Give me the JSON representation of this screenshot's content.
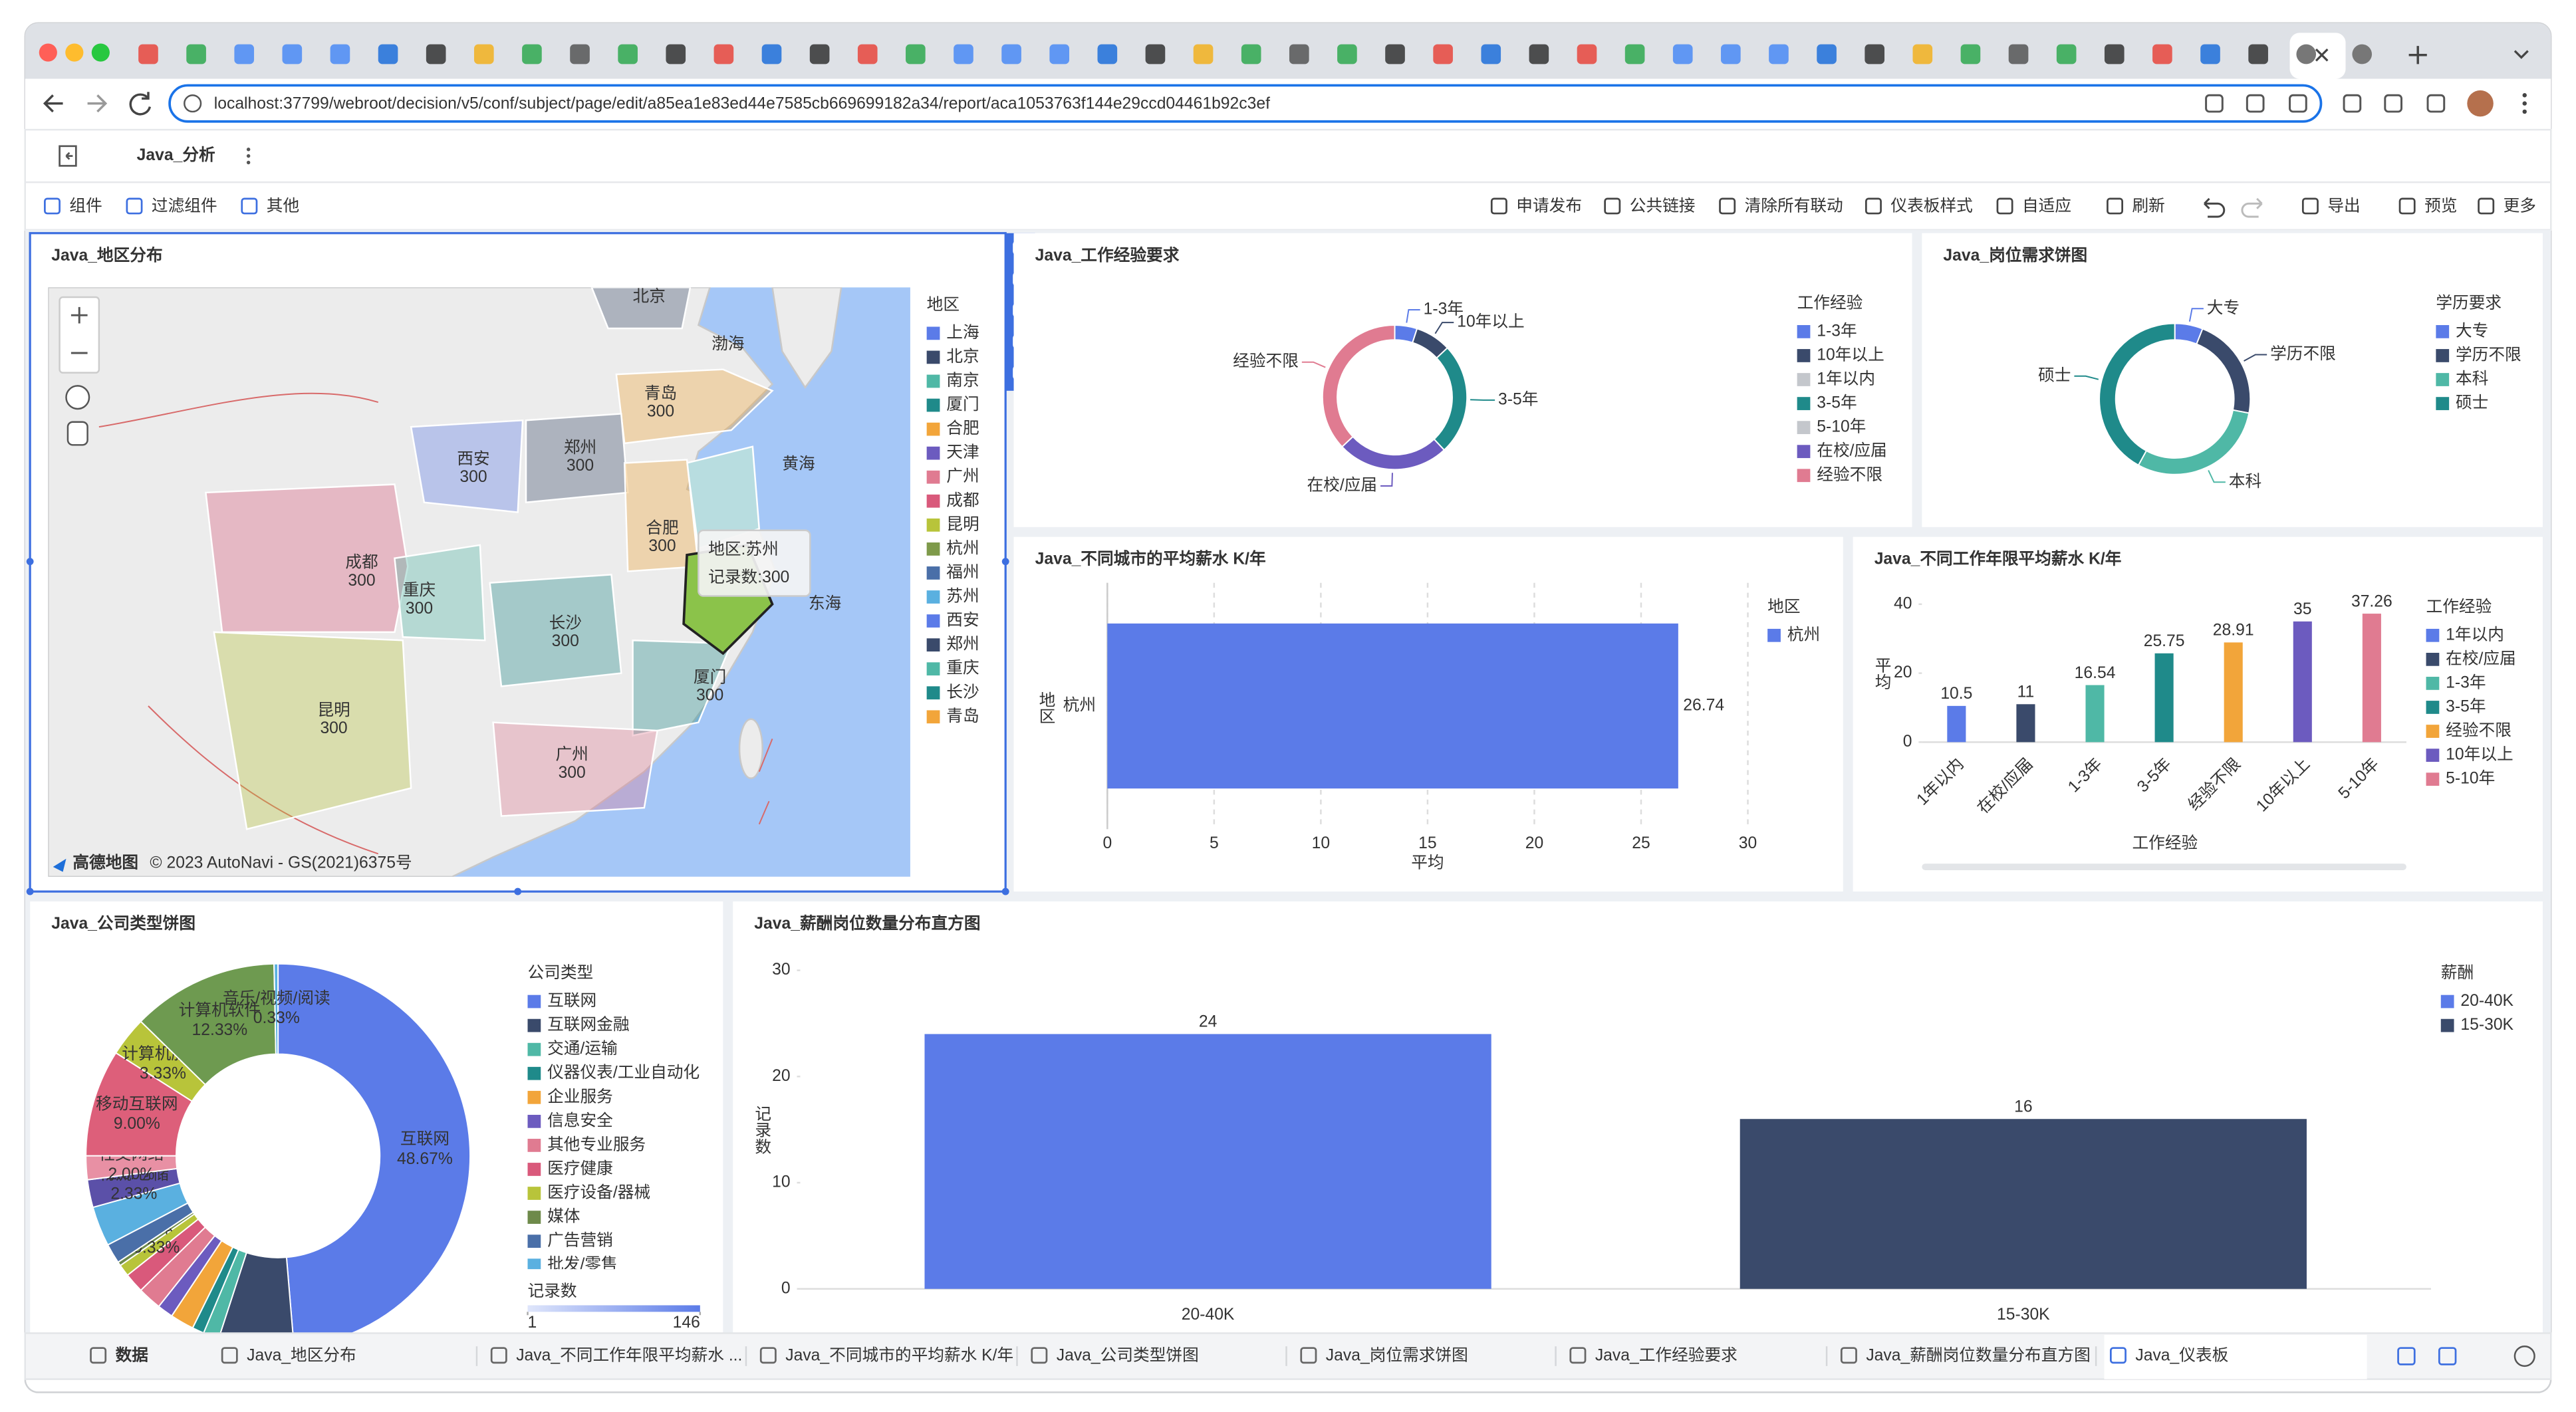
{
  "browser": {
    "url": "localhost:37799/webroot/decision/v5/conf/subject/page/edit/a85ea1e83ed44e7585cb669699182a34/report/aca1053763f144e29ccd04461b92c3ef"
  },
  "header": {
    "title": "Java_分析"
  },
  "toolbar": {
    "left": [
      "组件",
      "过滤组件",
      "其他"
    ],
    "right": [
      "申请发布",
      "公共链接",
      "清除所有联动",
      "仪表板样式",
      "自适应",
      "刷新",
      "导出",
      "预览",
      "更多"
    ]
  },
  "chart_data": [
    {
      "type": "map",
      "title": "Java_地区分布",
      "legend_title": "地区",
      "categories": [
        "上海",
        "北京",
        "南京",
        "厦门",
        "合肥",
        "天津",
        "广州",
        "成都",
        "昆明",
        "杭州",
        "福州",
        "苏州",
        "西安",
        "郑州",
        "重庆",
        "长沙",
        "青岛"
      ],
      "colors": [
        "#5b7be8",
        "#3a4a6b",
        "#4fb8a6",
        "#1f8a8a",
        "#f2a53a",
        "#6c5bbf",
        "#e07b91",
        "#d9597b",
        "#b8c43a",
        "#7e9a4a",
        "#4a6fa8",
        "#5ab0e0",
        "#5b7be8",
        "#3a4a6b",
        "#4fb8a6",
        "#1f8a8a",
        "#f2a53a"
      ],
      "region_labels": [
        {
          "name": "北京"
        },
        {
          "name": "青岛",
          "value": 300
        },
        {
          "name": "西安",
          "value": 300
        },
        {
          "name": "郑州",
          "value": 300
        },
        {
          "name": "成都",
          "value": 300
        },
        {
          "name": "重庆",
          "value": 300
        },
        {
          "name": "合肥",
          "value": 300
        },
        {
          "name": "长沙",
          "value": 300
        },
        {
          "name": "厦门",
          "value": 300
        },
        {
          "name": "昆明",
          "value": 300
        },
        {
          "name": "广州",
          "value": 300
        }
      ],
      "sea_labels": [
        "渤海",
        "黄海",
        "东海"
      ],
      "tooltip": [
        "地区:苏州",
        "记录数:300"
      ],
      "attribution": "高德地图",
      "copyright": "© 2023 AutoNavi - GS(2021)6375号"
    },
    {
      "type": "donut",
      "title": "Java_工作经验要求",
      "legend_title": "工作经验",
      "label_position": "outside",
      "categories": [
        "1-3年",
        "10年以上",
        "1年以内",
        "3-5年",
        "5-10年",
        "在校/应届",
        "经验不限"
      ],
      "values": [
        5,
        8,
        null,
        25,
        null,
        25,
        37
      ],
      "colors": [
        "#5b7be8",
        "#3a4a6b",
        "#c4c7cc",
        "#1f8a8a",
        "#c4c7cc",
        "#6c5bbf",
        "#e07b91"
      ]
    },
    {
      "type": "donut",
      "title": "Java_岗位需求饼图",
      "legend_title": "学历要求",
      "label_position": "outside",
      "categories": [
        "大专",
        "学历不限",
        "本科",
        "硕士"
      ],
      "values": [
        6,
        22,
        30,
        42
      ],
      "colors": [
        "#5b7be8",
        "#3a4a6b",
        "#4fb8a6",
        "#1f8a8a"
      ]
    },
    {
      "type": "bar",
      "orientation": "horizontal",
      "title": "Java_不同城市的平均薪水 K/年",
      "legend_title": "地区",
      "y_label": "地区",
      "x_label": "平均",
      "categories": [
        "杭州"
      ],
      "values": [
        26.74
      ],
      "colors": [
        "#5b7be8"
      ],
      "xlim": [
        0,
        30
      ],
      "xticks": [
        0,
        5,
        10,
        15,
        20,
        25,
        30
      ],
      "grid": true
    },
    {
      "type": "bar",
      "title": "Java_不同工作年限平均薪水 K/年",
      "legend_title": "工作经验",
      "x_label": "工作经验",
      "y_label": "平均",
      "categories": [
        "1年以内",
        "在校/应届",
        "1-3年",
        "3-5年",
        "经验不限",
        "10年以上",
        "5-10年"
      ],
      "values": [
        10.5,
        11,
        16.54,
        25.75,
        28.91,
        35,
        37.26
      ],
      "colors": [
        "#5b7be8",
        "#3a4a6b",
        "#4fb8a6",
        "#1f8a8a",
        "#f2a53a",
        "#6c5bbf",
        "#e07b91"
      ],
      "ylim": [
        0,
        40
      ],
      "yticks": [
        0,
        20,
        40
      ],
      "grid": false
    },
    {
      "type": "donut",
      "title": "Java_公司类型饼图",
      "legend_title": "公司类型",
      "label_position": "inside",
      "categories": [
        "互联网",
        "互联网金融",
        "交通/运输",
        "仪器仪表/工业自动化",
        "企业服务",
        "信息安全",
        "其他专业服务",
        "医疗健康",
        "医疗设备/器械",
        "媒体",
        "广告营销",
        "批发/零售",
        "物流/仓储",
        "社交网络",
        "移动互联网",
        "计算机服务",
        "计算机软件",
        "音乐/视频/阅读"
      ],
      "values": [
        48.67,
        6.33,
        1.33,
        1.0,
        2.0,
        1.33,
        2.0,
        1.67,
        1.0,
        0.33,
        1.67,
        3.35,
        2.33,
        2.0,
        9.0,
        3.33,
        12.33,
        0.33
      ],
      "value_labels": [
        "48.67%",
        null,
        null,
        null,
        null,
        null,
        null,
        null,
        null,
        "0.33%",
        null,
        null,
        "2.33%",
        "2.00%",
        "9.00%",
        "3.33%",
        "12.33%",
        "0.33%"
      ],
      "colors": [
        "#5b7be8",
        "#3a4a6b",
        "#4fb8a6",
        "#1f8a8a",
        "#f2a53a",
        "#6c5bbf",
        "#e07b91",
        "#d9597b",
        "#b8c43a",
        "#6e8a4a",
        "#4a6fa8",
        "#5ab0e0",
        "#5b50a8",
        "#e890a4",
        "#dd5f7a",
        "#b8c43a",
        "#6e9a50",
        "#5ab0e0"
      ],
      "color_scale_title": "记录数",
      "color_scale": [
        1,
        146
      ]
    },
    {
      "type": "bar",
      "title": "Java_薪酬岗位数量分布直方图",
      "legend_title": "薪酬",
      "y_label": "记录数",
      "categories": [
        "20-40K",
        "15-30K"
      ],
      "values": [
        24,
        16
      ],
      "colors": [
        "#5b7be8",
        "#3a4a6b"
      ],
      "ylim": [
        0,
        30
      ],
      "yticks": [
        0,
        10,
        20,
        30
      ],
      "grid": false
    }
  ],
  "footer_tabs": [
    "数据",
    "Java_地区分布",
    "Java_不同工作年限平均薪水 ...",
    "Java_不同城市的平均薪水 K/年",
    "Java_公司类型饼图",
    "Java_岗位需求饼图",
    "Java_工作经验要求",
    "Java_薪酬岗位数量分布直方图",
    "Java_仪表板"
  ]
}
